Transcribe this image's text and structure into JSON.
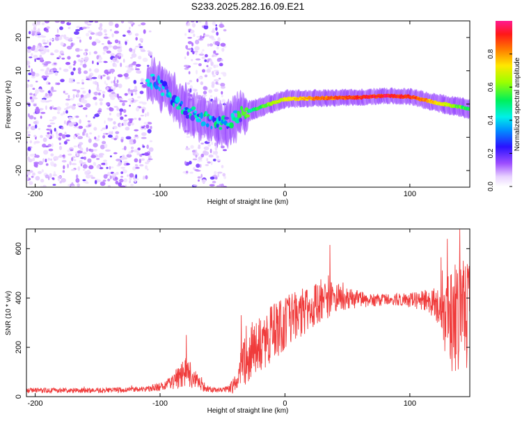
{
  "title": "S233.2025.282.16.09.E21",
  "chart_data": [
    {
      "type": "heatmap",
      "name": "spectrogram",
      "xlabel": "Height of straight line (km)",
      "ylabel": "Frequency (Hz)",
      "xlim": [
        -207,
        148
      ],
      "ylim": [
        -25,
        25
      ],
      "xticks": [
        -200,
        -100,
        0,
        100
      ],
      "yticks": [
        -20,
        -10,
        0,
        10,
        20
      ],
      "colorbar": {
        "label": "Normalized spectral amplitude",
        "range": [
          0,
          1
        ],
        "ticks": [
          0.0,
          0.2,
          0.4,
          0.6,
          0.8
        ]
      },
      "signal_track": {
        "x": [
          -105,
          -90,
          -75,
          -60,
          -48,
          -35,
          -20,
          0,
          30,
          60,
          80,
          100,
          120,
          148
        ],
        "frequency_hz": [
          7,
          2,
          -3,
          -5,
          -6,
          -3,
          -1,
          1.5,
          1.8,
          2,
          2.5,
          2.2,
          0.5,
          -1.5
        ],
        "peak_amplitude": [
          0.25,
          0.3,
          0.35,
          0.4,
          0.35,
          0.45,
          0.6,
          0.75,
          0.9,
          0.95,
          1.0,
          0.95,
          0.8,
          0.55
        ]
      },
      "noise_regions": [
        {
          "x_range": [
            -207,
            -107
          ],
          "amplitude": 0.1
        },
        {
          "x_range": [
            -80,
            -48
          ],
          "amplitude": 0.1
        }
      ]
    },
    {
      "type": "line",
      "name": "snr",
      "xlabel": "Height of straight line (km)",
      "ylabel": "SNR (10 * v/v)",
      "xlim": [
        -207,
        148
      ],
      "ylim": [
        0,
        680
      ],
      "xticks": [
        -200,
        -100,
        0,
        100
      ],
      "yticks": [
        0,
        200,
        400,
        600
      ],
      "color": "#f03c3c",
      "series": [
        {
          "name": "SNR",
          "x": [
            -207,
            -150,
            -110,
            -95,
            -85,
            -80,
            -75,
            -65,
            -55,
            -45,
            -40,
            -35,
            -30,
            -20,
            -10,
            0,
            10,
            20,
            30,
            40,
            50,
            60,
            70,
            80,
            90,
            100,
            110,
            120,
            125,
            130,
            135,
            140,
            148
          ],
          "baseline": [
            25,
            25,
            30,
            45,
            80,
            100,
            85,
            35,
            25,
            30,
            50,
            110,
            170,
            210,
            260,
            300,
            330,
            360,
            385,
            400,
            400,
            395,
            390,
            395,
            395,
            390,
            390,
            380,
            360,
            310,
            300,
            330,
            320
          ],
          "jitter": [
            10,
            10,
            12,
            20,
            50,
            70,
            50,
            15,
            10,
            15,
            40,
            90,
            110,
            130,
            120,
            110,
            100,
            90,
            80,
            65,
            45,
            35,
            25,
            25,
            25,
            30,
            40,
            60,
            110,
            180,
            230,
            250,
            250
          ],
          "peaks": [
            {
              "x": -79,
              "value": 250
            },
            {
              "x": -35,
              "value": 330
            },
            {
              "x": 36,
              "value": 615
            },
            {
              "x": 125,
              "value": 565
            },
            {
              "x": 130,
              "value": 640
            },
            {
              "x": 140,
              "value": 678
            }
          ]
        }
      ]
    }
  ]
}
